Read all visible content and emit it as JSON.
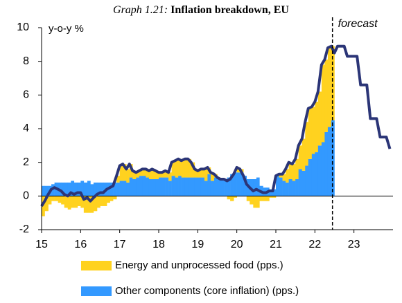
{
  "chart_data": {
    "type": "stacked-bar-line",
    "title": {
      "number": "Graph 1.21:",
      "text": "Inflation breakdown, EU"
    },
    "ylabel": "y-o-y %",
    "xlim": [
      15,
      24
    ],
    "xticks": [
      15,
      16,
      17,
      18,
      19,
      20,
      21,
      22,
      23
    ],
    "ylim": [
      -2,
      10
    ],
    "yticks": [
      -2,
      0,
      2,
      4,
      6,
      8,
      10
    ],
    "x": [
      15.0,
      15.08,
      15.17,
      15.25,
      15.33,
      15.42,
      15.5,
      15.58,
      15.67,
      15.75,
      15.83,
      15.92,
      16.0,
      16.08,
      16.17,
      16.25,
      16.33,
      16.42,
      16.5,
      16.58,
      16.67,
      16.75,
      16.83,
      16.92,
      17.0,
      17.08,
      17.17,
      17.25,
      17.33,
      17.42,
      17.5,
      17.58,
      17.67,
      17.75,
      17.83,
      17.92,
      18.0,
      18.08,
      18.17,
      18.25,
      18.33,
      18.42,
      18.5,
      18.58,
      18.67,
      18.75,
      18.83,
      18.92,
      19.0,
      19.08,
      19.17,
      19.25,
      19.33,
      19.42,
      19.5,
      19.58,
      19.67,
      19.75,
      19.83,
      19.92,
      20.0,
      20.08,
      20.17,
      20.25,
      20.33,
      20.42,
      20.5,
      20.58,
      20.67,
      20.75,
      20.83,
      20.92,
      21.0,
      21.08,
      21.17,
      21.25,
      21.33,
      21.42,
      21.5,
      21.58,
      21.67,
      21.75,
      21.83,
      21.92,
      22.0,
      22.08,
      22.17,
      22.25,
      22.33,
      22.42,
      22.5,
      22.58,
      22.67,
      22.75,
      22.83,
      22.92,
      23.0,
      23.08,
      23.17,
      23.25,
      23.33,
      23.42,
      23.5,
      23.58,
      23.67,
      23.75,
      23.83,
      23.92
    ],
    "series": [
      {
        "name": "Energy and unprocessed food (pps.)",
        "color": "#ffd21f",
        "values": [
          -1.2,
          -0.9,
          -0.5,
          -0.3,
          -0.3,
          -0.4,
          -0.5,
          -0.7,
          -0.8,
          -0.7,
          -0.7,
          -0.6,
          -0.7,
          -1.0,
          -1.0,
          -1.0,
          -0.9,
          -0.7,
          -0.6,
          -0.6,
          -0.4,
          -0.3,
          -0.2,
          0.4,
          0.9,
          1.0,
          0.8,
          0.8,
          0.5,
          0.3,
          0.3,
          0.4,
          0.5,
          0.5,
          0.6,
          0.5,
          0.3,
          0.3,
          0.4,
          0.5,
          0.8,
          1.0,
          1.0,
          1.0,
          1.1,
          1.1,
          0.9,
          0.5,
          0.4,
          0.5,
          0.7,
          0.4,
          0.5,
          0.2,
          0.1,
          0.0,
          0.0,
          -0.2,
          -0.3,
          -0.1,
          0.3,
          0.2,
          0.0,
          -0.3,
          -0.5,
          -0.7,
          -0.7,
          -0.3,
          -0.3,
          -0.3,
          -0.1,
          -0.1,
          0.0,
          0.2,
          0.4,
          0.8,
          1.0,
          1.0,
          1.2,
          1.4,
          1.9,
          2.6,
          3.0,
          2.8,
          3.0,
          3.2,
          4.6,
          4.3,
          4.7,
          4.4,
          null,
          null,
          null,
          null,
          null,
          null,
          null,
          null,
          null,
          null,
          null,
          null,
          null,
          null,
          null,
          null,
          null,
          null
        ]
      },
      {
        "name": "Other components (core inflation) (pps.)",
        "color": "#3399ff",
        "values": [
          0.6,
          0.6,
          0.6,
          0.7,
          0.8,
          0.8,
          0.8,
          0.8,
          0.8,
          0.9,
          0.8,
          0.8,
          0.9,
          0.8,
          0.9,
          0.7,
          0.8,
          0.8,
          0.8,
          0.8,
          0.8,
          0.8,
          0.8,
          0.8,
          0.9,
          0.9,
          0.8,
          1.1,
          1.0,
          1.1,
          1.2,
          1.2,
          1.1,
          1.0,
          1.0,
          1.0,
          1.1,
          1.1,
          1.1,
          0.9,
          1.2,
          1.1,
          1.2,
          1.1,
          1.1,
          1.1,
          1.1,
          1.1,
          1.1,
          1.1,
          0.9,
          1.3,
          0.9,
          1.1,
          1.0,
          1.0,
          1.0,
          1.1,
          1.3,
          1.4,
          1.4,
          1.4,
          1.2,
          1.0,
          1.0,
          1.0,
          1.1,
          0.6,
          0.5,
          0.5,
          0.4,
          0.4,
          1.2,
          1.1,
          0.9,
          0.8,
          1.0,
          0.9,
          1.0,
          1.6,
          1.5,
          1.8,
          2.2,
          2.5,
          2.6,
          3.0,
          3.2,
          3.8,
          4.1,
          4.5,
          null,
          null,
          null,
          null,
          null,
          null,
          null,
          null,
          null,
          null,
          null,
          null,
          null,
          null,
          null,
          null,
          null,
          null
        ]
      }
    ],
    "line": {
      "color": "#2b3577",
      "values": [
        -0.6,
        -0.3,
        0.1,
        0.4,
        0.5,
        0.4,
        0.3,
        0.1,
        0.0,
        0.2,
        0.1,
        0.2,
        0.2,
        -0.2,
        -0.1,
        -0.3,
        -0.1,
        0.1,
        0.2,
        0.2,
        0.4,
        0.5,
        0.6,
        1.2,
        1.8,
        1.9,
        1.6,
        1.9,
        1.5,
        1.4,
        1.5,
        1.6,
        1.6,
        1.5,
        1.6,
        1.5,
        1.4,
        1.4,
        1.5,
        1.4,
        2.0,
        2.1,
        2.2,
        2.1,
        2.2,
        2.2,
        2.0,
        1.6,
        1.5,
        1.6,
        1.6,
        1.7,
        1.4,
        1.3,
        1.1,
        1.0,
        1.0,
        0.9,
        1.0,
        1.3,
        1.7,
        1.6,
        1.2,
        0.7,
        0.5,
        0.3,
        0.4,
        0.3,
        0.2,
        0.2,
        0.3,
        0.3,
        1.2,
        1.3,
        1.3,
        1.6,
        2.0,
        1.9,
        2.2,
        3.0,
        3.4,
        4.4,
        5.2,
        5.3,
        5.6,
        6.2,
        7.8,
        8.1,
        8.8,
        8.9,
        8.5,
        8.9,
        8.9,
        8.9,
        8.3,
        8.3,
        8.3,
        8.3,
        6.6,
        6.6,
        6.6,
        4.6,
        4.6,
        4.6,
        3.5,
        3.5,
        3.5,
        2.8
      ]
    },
    "annotations": [
      {
        "text": "forecast",
        "x": 22.45
      }
    ]
  }
}
